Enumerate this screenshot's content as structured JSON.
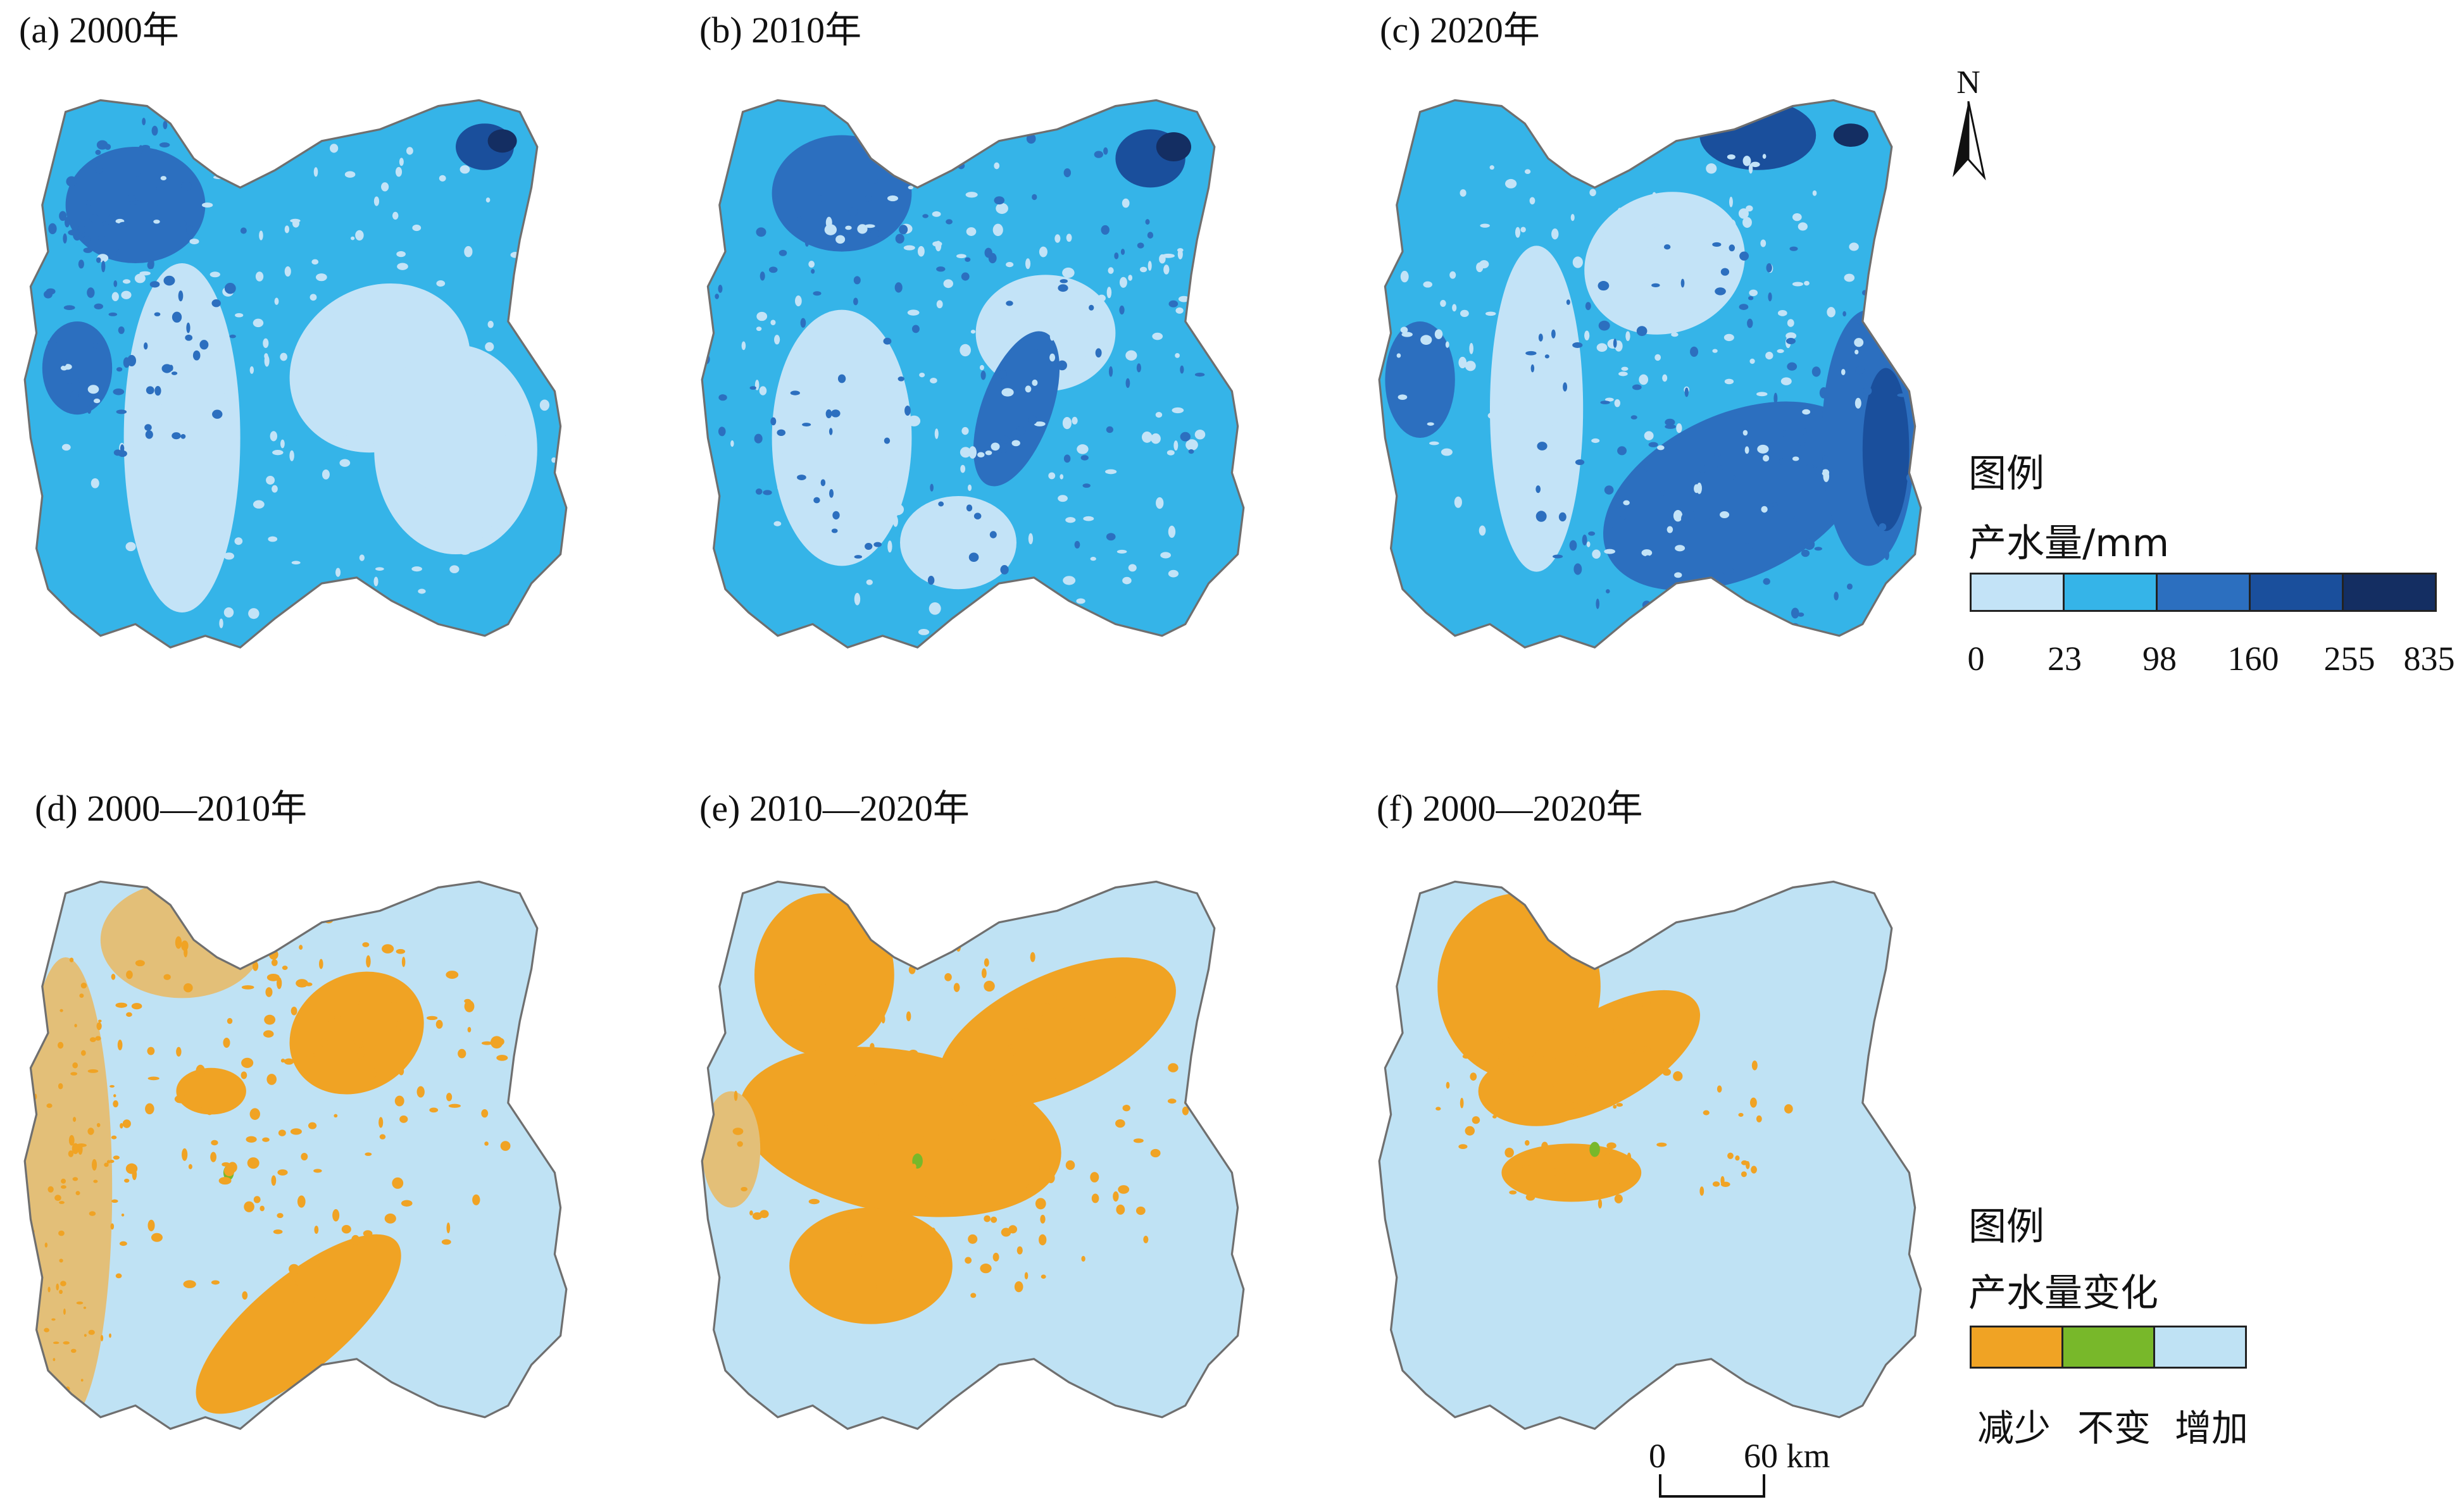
{
  "panels": [
    {
      "id": "a",
      "title": "(a) 2000年"
    },
    {
      "id": "b",
      "title": "(b) 2010年"
    },
    {
      "id": "c",
      "title": "(c) 2020年"
    },
    {
      "id": "d",
      "title": "(d) 2000—2010年"
    },
    {
      "id": "e",
      "title": "(e) 2010—2020年"
    },
    {
      "id": "f",
      "title": "(f) 2000—2020年"
    }
  ],
  "north_arrow": {
    "label": "N"
  },
  "legend_yield": {
    "title": "图例",
    "subtitle": "产水量/mm",
    "classes": [
      {
        "color": "#c3e3f7"
      },
      {
        "color": "#35b4e8"
      },
      {
        "color": "#2c6fbf"
      },
      {
        "color": "#1a4f9c"
      },
      {
        "color": "#142e62"
      }
    ],
    "breaks": [
      "0",
      "23",
      "98",
      "160",
      "255",
      "835"
    ]
  },
  "legend_change": {
    "title": "图例",
    "subtitle": "产水量变化",
    "classes": [
      {
        "color": "#f0a324",
        "label": "减少"
      },
      {
        "color": "#78b82a",
        "label": "不变"
      },
      {
        "color": "#bfe2f4",
        "label": "增加"
      }
    ]
  },
  "scale_bar": {
    "left_label": "0",
    "right_label": "60 km"
  },
  "colors": {
    "outline": "#6f6f6f",
    "decrease": "#f0a324",
    "unchanged": "#78b82a",
    "increase": "#bfe2f4",
    "yield_class_1": "#c3e3f7",
    "yield_class_2": "#35b4e8",
    "yield_class_3": "#2c6fbf",
    "yield_class_4": "#1a4f9c",
    "yield_class_5": "#142e62"
  }
}
